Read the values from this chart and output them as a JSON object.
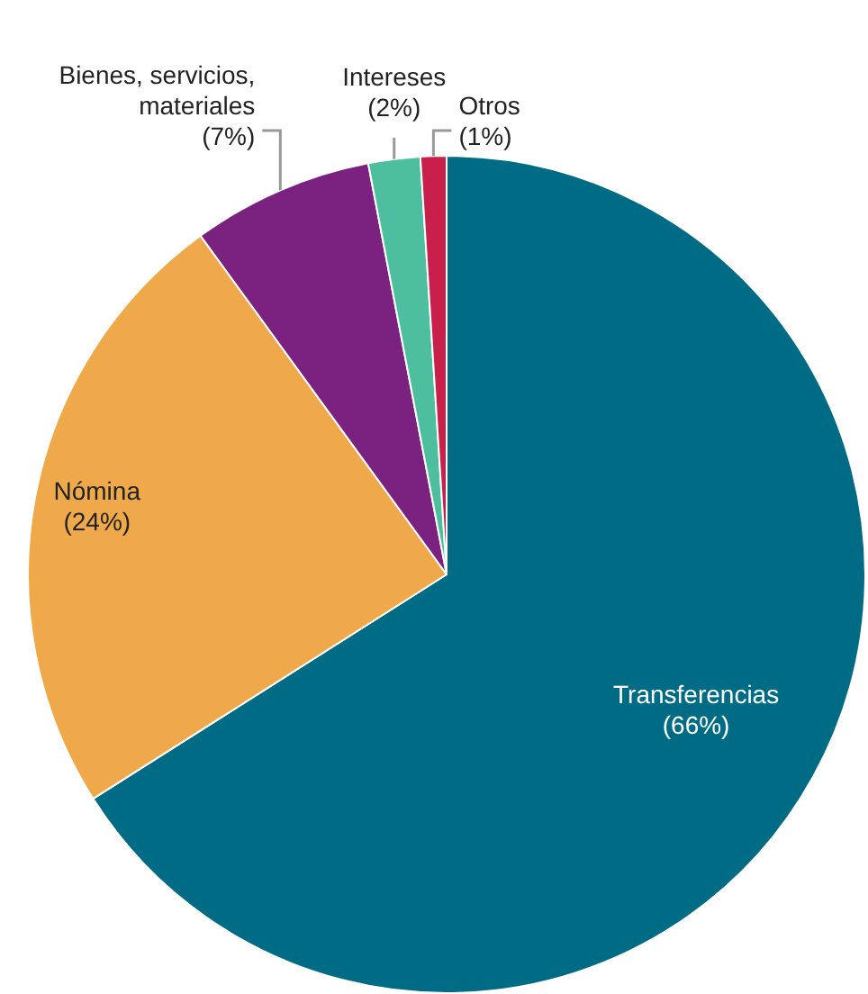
{
  "chart_data": {
    "type": "pie",
    "categories": [
      "Transferencias",
      "Nómina",
      "Bienes, servicios, materiales",
      "Intereses",
      "Otros"
    ],
    "values": [
      66,
      24,
      7,
      2,
      1
    ],
    "value_labels": [
      "(66%)",
      "(24%)",
      "(7%)",
      "(2%)",
      "(1%)"
    ],
    "colors": [
      "#006b84",
      "#f0a94a",
      "#7b2180",
      "#4dbf9f",
      "#c8204a"
    ]
  }
}
